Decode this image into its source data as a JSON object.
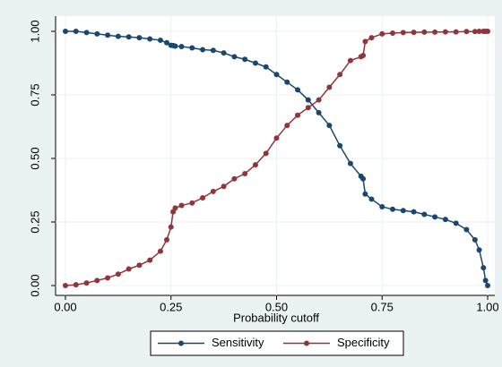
{
  "chart_data": {
    "type": "line",
    "x_label": "Probability cutoff",
    "x": [
      0,
      0.025,
      0.05,
      0.075,
      0.1,
      0.125,
      0.15,
      0.175,
      0.2,
      0.225,
      0.24,
      0.25,
      0.255,
      0.26,
      0.275,
      0.3,
      0.325,
      0.35,
      0.375,
      0.4,
      0.425,
      0.45,
      0.475,
      0.5,
      0.525,
      0.55,
      0.575,
      0.6,
      0.625,
      0.65,
      0.675,
      0.7,
      0.705,
      0.71,
      0.725,
      0.75,
      0.775,
      0.8,
      0.825,
      0.85,
      0.875,
      0.9,
      0.925,
      0.95,
      0.97,
      0.98,
      0.99,
      0.995,
      1.0
    ],
    "series": [
      {
        "name": "Sensitivity",
        "color": "#1a476f",
        "values": [
          1.0,
          1.0,
          0.995,
          0.99,
          0.985,
          0.98,
          0.978,
          0.975,
          0.97,
          0.965,
          0.955,
          0.945,
          0.944,
          0.942,
          0.94,
          0.935,
          0.928,
          0.925,
          0.915,
          0.9,
          0.89,
          0.875,
          0.86,
          0.83,
          0.8,
          0.77,
          0.73,
          0.68,
          0.63,
          0.55,
          0.48,
          0.43,
          0.42,
          0.36,
          0.34,
          0.31,
          0.3,
          0.295,
          0.29,
          0.28,
          0.27,
          0.26,
          0.245,
          0.22,
          0.18,
          0.14,
          0.07,
          0.02,
          0.0
        ]
      },
      {
        "name": "Specificity",
        "color": "#90353b",
        "values": [
          0,
          0.003,
          0.01,
          0.02,
          0.03,
          0.045,
          0.065,
          0.08,
          0.1,
          0.135,
          0.18,
          0.23,
          0.29,
          0.305,
          0.315,
          0.325,
          0.345,
          0.37,
          0.39,
          0.42,
          0.44,
          0.475,
          0.52,
          0.58,
          0.63,
          0.67,
          0.7,
          0.73,
          0.78,
          0.83,
          0.885,
          0.9,
          0.905,
          0.96,
          0.975,
          0.99,
          0.993,
          0.995,
          0.996,
          0.997,
          0.997,
          0.998,
          0.998,
          0.999,
          0.999,
          1,
          1,
          1,
          1
        ]
      }
    ],
    "xlim": [
      0,
      1
    ],
    "xticks": [
      {
        "value": 0,
        "label": "0.00"
      },
      {
        "value": 0.25,
        "label": "0.25"
      },
      {
        "value": 0.5,
        "label": "0.50"
      },
      {
        "value": 0.75,
        "label": "0.75"
      },
      {
        "value": 1,
        "label": "1.00"
      }
    ],
    "ylim": [
      0,
      1
    ],
    "yticks": [
      {
        "value": 0,
        "label": "0.00"
      },
      {
        "value": 0.25,
        "label": "0.25"
      },
      {
        "value": 0.5,
        "label": "0.50"
      },
      {
        "value": 0.75,
        "label": "0.75"
      },
      {
        "value": 1,
        "label": "1.00"
      }
    ],
    "grid": true,
    "legend": "bottom"
  }
}
